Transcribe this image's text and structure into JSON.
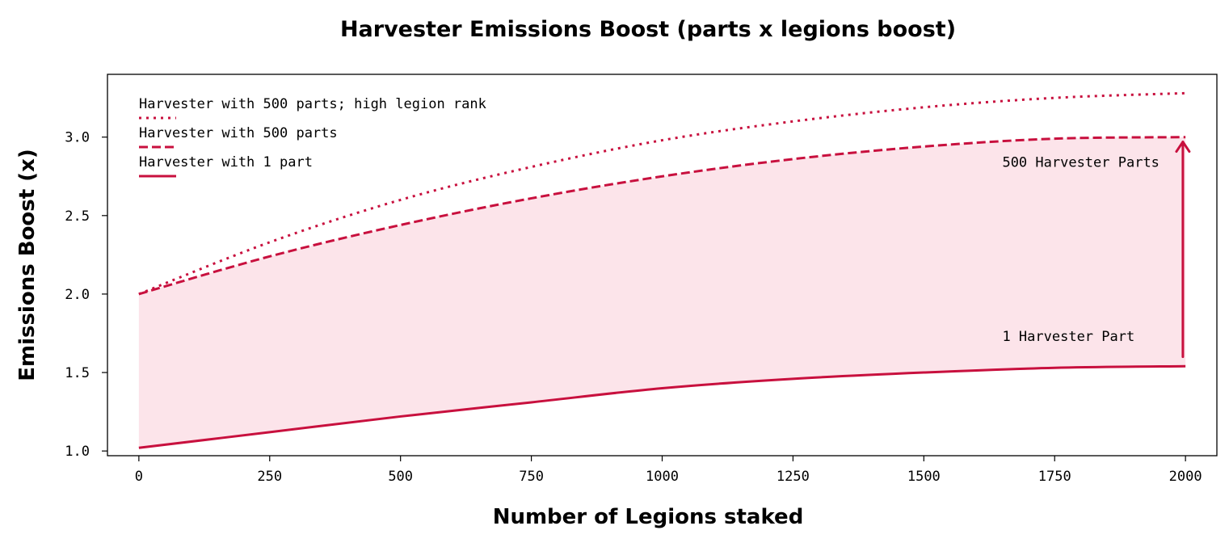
{
  "chart_data": {
    "type": "line",
    "title": "Harvester Emissions Boost (parts x legions boost)",
    "xlabel": "Number of Legions staked",
    "ylabel": "Emissions Boost (x)",
    "xlim": [
      -60,
      2060
    ],
    "ylim": [
      0.97,
      3.4
    ],
    "xticks": [
      0,
      250,
      500,
      750,
      1000,
      1250,
      1500,
      1750,
      2000
    ],
    "yticks": [
      1.0,
      1.5,
      2.0,
      2.5,
      3.0
    ],
    "xtick_labels": [
      "0",
      "250",
      "500",
      "750",
      "1000",
      "1250",
      "1500",
      "1750",
      "2000"
    ],
    "ytick_labels": [
      "1.0",
      "1.5",
      "2.0",
      "2.5",
      "3.0"
    ],
    "grid": false,
    "legend_position": "top-left",
    "color": "#c8103e",
    "fill_color": "#fce4ea",
    "x": [
      0,
      250,
      500,
      750,
      1000,
      1250,
      1500,
      1750,
      2000
    ],
    "series": [
      {
        "name": "Harvester with 500 parts; high legion rank",
        "style": "dotted",
        "values": [
          2.0,
          2.33,
          2.6,
          2.81,
          2.98,
          3.1,
          3.19,
          3.25,
          3.28
        ]
      },
      {
        "name": "Harvester with 500 parts",
        "style": "dashed",
        "values": [
          2.0,
          2.24,
          2.44,
          2.61,
          2.75,
          2.86,
          2.94,
          2.99,
          3.0
        ]
      },
      {
        "name": "Harvester with 1 part",
        "style": "solid",
        "values": [
          1.02,
          1.12,
          1.22,
          1.31,
          1.4,
          1.46,
          1.5,
          1.53,
          1.54
        ]
      }
    ],
    "fill_between": [
      "Harvester with 500 parts",
      "Harvester with 1 part"
    ],
    "annotations": [
      {
        "text": "500 Harvester Parts",
        "x": 1650,
        "y": 2.81
      },
      {
        "text": "1 Harvester Part",
        "x": 1650,
        "y": 1.7
      }
    ],
    "arrow": {
      "x": 1995,
      "y_from": 1.6,
      "y_to": 2.97
    }
  }
}
